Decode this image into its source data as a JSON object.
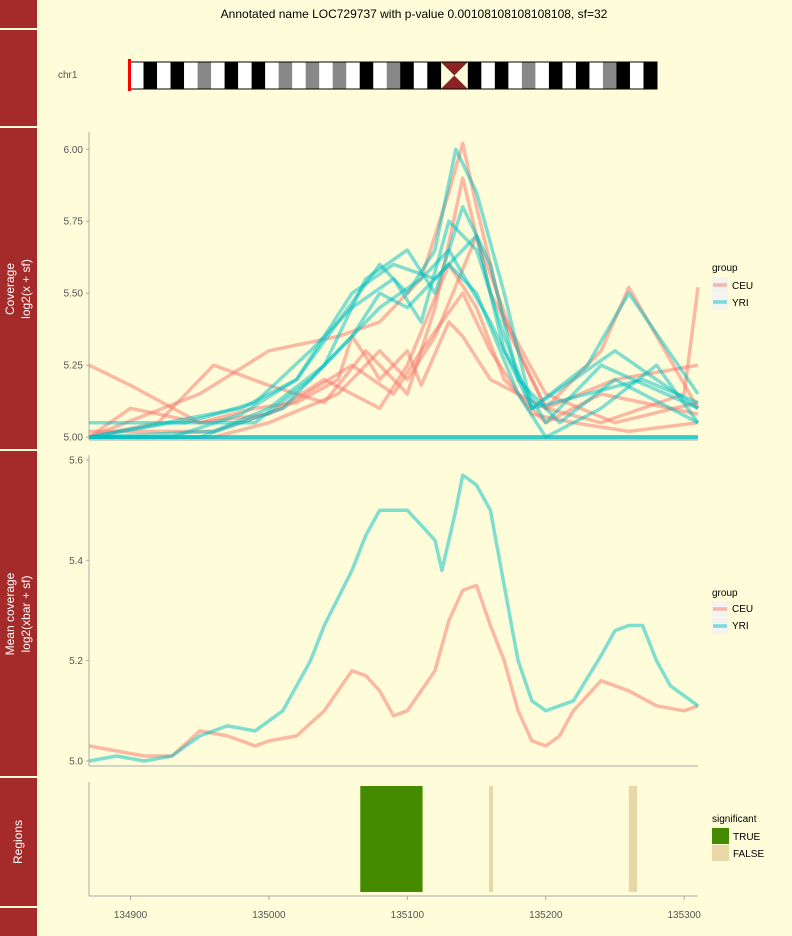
{
  "title": "Annotated name LOC729737 with p-value 0.00108108108108108, sf=32",
  "colors": {
    "ceu": "#f8766d",
    "yri": "#00bfc4",
    "strip": "#a52a2a",
    "true": "#458b00",
    "false": "#e8d8a8",
    "background": "#fffdd9"
  },
  "ideogram": {
    "chromosome_label": "chr1",
    "bands": [
      "w",
      "k",
      "w",
      "k",
      "w",
      "g",
      "w",
      "k",
      "w",
      "k",
      "w",
      "g",
      "w",
      "g",
      "w",
      "g",
      "w",
      "k",
      "w",
      "g",
      "k",
      "w",
      "k",
      "c",
      "c",
      "k",
      "w",
      "k",
      "w",
      "g",
      "w",
      "k",
      "w",
      "k",
      "w",
      "g",
      "k",
      "w",
      "k"
    ]
  },
  "chart_data": [
    {
      "type": "line",
      "ylabel_lines": [
        "Coverage",
        "log2(x + sf)"
      ],
      "x_range": [
        134870,
        135310
      ],
      "ylim": [
        4.99,
        6.06
      ],
      "yticks": [
        "5.00",
        "5.25",
        "5.50",
        "5.75",
        "6.00"
      ],
      "legend": {
        "title": "group",
        "entries": [
          "CEU",
          "YRI"
        ],
        "position": "right"
      },
      "series_groups": [
        {
          "name": "CEU",
          "color": "#f8766d",
          "series": [
            {
              "x": [
                134870,
                134900,
                134950,
                134990,
                135020,
                135050,
                135060,
                135070,
                135080,
                135100,
                135110,
                135130,
                135140,
                135160,
                135200,
                135250,
                135310
              ],
              "y": [
                5.25,
                5.18,
                5.05,
                5.1,
                5.12,
                5.2,
                5.35,
                5.28,
                5.2,
                5.3,
                5.18,
                5.4,
                5.35,
                5.2,
                5.1,
                5.2,
                5.25
              ]
            },
            {
              "x": [
                134870,
                134950,
                135000,
                135050,
                135080,
                135110,
                135130,
                135140,
                135150,
                135170,
                135200,
                135240,
                135260,
                135310
              ],
              "y": [
                5.0,
                5.15,
                5.3,
                5.35,
                5.4,
                5.55,
                5.85,
                6.02,
                5.8,
                5.4,
                5.1,
                5.3,
                5.52,
                5.1
              ]
            },
            {
              "x": [
                134870,
                134920,
                134960,
                135000,
                135040,
                135070,
                135100,
                135120,
                135140,
                135160,
                135200,
                135250,
                135310
              ],
              "y": [
                5.0,
                5.05,
                5.25,
                5.18,
                5.12,
                5.3,
                5.15,
                5.45,
                5.9,
                5.5,
                5.15,
                5.05,
                5.12
              ]
            },
            {
              "x": [
                134870,
                134900,
                134950,
                135000,
                135040,
                135080,
                135100,
                135130,
                135150,
                135170,
                135200,
                135240,
                135310
              ],
              "y": [
                5.0,
                5.1,
                5.05,
                5.08,
                5.2,
                5.1,
                5.25,
                5.6,
                5.45,
                5.2,
                5.05,
                5.15,
                5.08
              ]
            },
            {
              "x": [
                134870,
                134960,
                135000,
                135050,
                135080,
                135100,
                135120,
                135150,
                135180,
                135200,
                135240,
                135300,
                135310
              ],
              "y": [
                5.0,
                5.0,
                5.05,
                5.15,
                5.3,
                5.2,
                5.35,
                5.7,
                5.3,
                5.1,
                5.05,
                5.15,
                5.52
              ]
            },
            {
              "x": [
                134870,
                134960,
                135010,
                135060,
                135090,
                135110,
                135140,
                135160,
                135190,
                135220,
                135260,
                135310
              ],
              "y": [
                5.02,
                5.02,
                5.1,
                5.25,
                5.15,
                5.3,
                5.5,
                5.3,
                5.08,
                5.05,
                5.02,
                5.05
              ]
            }
          ]
        },
        {
          "name": "YRI",
          "color": "#00bfc4",
          "series": [
            {
              "x": [
                134870,
                134930,
                134980,
                135020,
                135050,
                135080,
                135100,
                135120,
                135135,
                135150,
                135170,
                135190,
                135220,
                135250,
                135280,
                135310
              ],
              "y": [
                5.0,
                5.0,
                5.08,
                5.2,
                5.4,
                5.6,
                5.5,
                5.65,
                6.0,
                5.85,
                5.5,
                5.1,
                5.2,
                5.3,
                5.2,
                5.1
              ]
            },
            {
              "x": [
                134870,
                134940,
                134990,
                135030,
                135060,
                135090,
                135110,
                135130,
                135150,
                135170,
                135190,
                135230,
                135260,
                135310
              ],
              "y": [
                5.05,
                5.05,
                5.12,
                5.3,
                5.45,
                5.55,
                5.4,
                5.75,
                5.65,
                5.35,
                5.1,
                5.25,
                5.5,
                5.15
              ]
            },
            {
              "x": [
                134870,
                134960,
                135000,
                135040,
                135070,
                135100,
                135120,
                135140,
                135160,
                135180,
                135210,
                135250,
                135310
              ],
              "y": [
                5.0,
                5.02,
                5.1,
                5.25,
                5.55,
                5.65,
                5.5,
                5.8,
                5.6,
                5.2,
                5.05,
                5.2,
                5.05
              ]
            },
            {
              "x": [
                134870,
                134930,
                134990,
                135030,
                135060,
                135080,
                135100,
                135130,
                135150,
                135180,
                135200,
                135240,
                135280,
                135310
              ],
              "y": [
                5.0,
                5.05,
                5.05,
                5.2,
                5.35,
                5.5,
                5.45,
                5.6,
                5.5,
                5.15,
                5.0,
                5.1,
                5.25,
                5.05
              ]
            },
            {
              "x": [
                134870,
                134950,
                135010,
                135050,
                135080,
                135110,
                135130,
                135160,
                135190,
                135230,
                135270,
                135310
              ],
              "y": [
                5.0,
                5.0,
                5.1,
                5.3,
                5.45,
                5.55,
                5.65,
                5.4,
                5.1,
                5.15,
                5.2,
                5.12
              ]
            },
            {
              "x": [
                134870,
                134980,
                135020,
                135060,
                135090,
                135120,
                135150,
                135170,
                135200,
                135240,
                135310
              ],
              "y": [
                5.0,
                5.1,
                5.2,
                5.5,
                5.6,
                5.55,
                5.7,
                5.3,
                5.05,
                5.25,
                5.1
              ]
            }
          ]
        }
      ]
    },
    {
      "type": "line",
      "ylabel_lines": [
        "Mean coverage",
        "log2(xbar + sf)"
      ],
      "x_range": [
        134870,
        135310
      ],
      "ylim": [
        4.99,
        5.61
      ],
      "yticks": [
        "5.0",
        "5.2",
        "5.4",
        "5.6"
      ],
      "legend": {
        "title": "group",
        "entries": [
          "CEU",
          "YRI"
        ],
        "position": "right"
      },
      "series": [
        {
          "name": "CEU",
          "color": "#f8766d",
          "x": [
            134870,
            134890,
            134910,
            134930,
            134950,
            134970,
            134990,
            135000,
            135020,
            135040,
            135060,
            135070,
            135080,
            135090,
            135100,
            135110,
            135120,
            135130,
            135140,
            135150,
            135160,
            135170,
            135180,
            135190,
            135200,
            135210,
            135220,
            135240,
            135260,
            135280,
            135300,
            135310
          ],
          "y": [
            5.03,
            5.02,
            5.01,
            5.01,
            5.06,
            5.05,
            5.03,
            5.04,
            5.05,
            5.1,
            5.18,
            5.17,
            5.14,
            5.09,
            5.1,
            5.14,
            5.18,
            5.28,
            5.34,
            5.35,
            5.27,
            5.2,
            5.1,
            5.04,
            5.03,
            5.05,
            5.1,
            5.16,
            5.14,
            5.11,
            5.1,
            5.11
          ]
        },
        {
          "name": "YRI",
          "color": "#00bfc4",
          "x": [
            134870,
            134890,
            134910,
            134930,
            134950,
            134970,
            134990,
            135010,
            135030,
            135040,
            135060,
            135070,
            135080,
            135090,
            135100,
            135110,
            135120,
            135125,
            135130,
            135135,
            135140,
            135150,
            135160,
            135170,
            135180,
            135190,
            135200,
            135210,
            135220,
            135240,
            135250,
            135260,
            135270,
            135280,
            135290,
            135300,
            135310
          ],
          "y": [
            5.0,
            5.01,
            5.0,
            5.01,
            5.05,
            5.07,
            5.06,
            5.1,
            5.2,
            5.27,
            5.38,
            5.45,
            5.5,
            5.5,
            5.5,
            5.47,
            5.44,
            5.38,
            5.44,
            5.5,
            5.57,
            5.55,
            5.5,
            5.35,
            5.2,
            5.12,
            5.1,
            5.11,
            5.12,
            5.21,
            5.26,
            5.27,
            5.27,
            5.2,
            5.15,
            5.13,
            5.11
          ]
        }
      ]
    },
    {
      "type": "bar",
      "strip_label": "Regions",
      "x_range": [
        134870,
        135310
      ],
      "xticks": [
        "134900",
        "135000",
        "135100",
        "135200",
        "135300"
      ],
      "legend": {
        "title": "significant",
        "entries": [
          "TRUE",
          "FALSE"
        ],
        "position": "right"
      },
      "regions": [
        {
          "start": 135066,
          "end": 135111,
          "significant": "TRUE"
        },
        {
          "start": 135159,
          "end": 135162,
          "significant": "FALSE"
        },
        {
          "start": 135260,
          "end": 135266,
          "significant": "FALSE"
        }
      ]
    }
  ]
}
